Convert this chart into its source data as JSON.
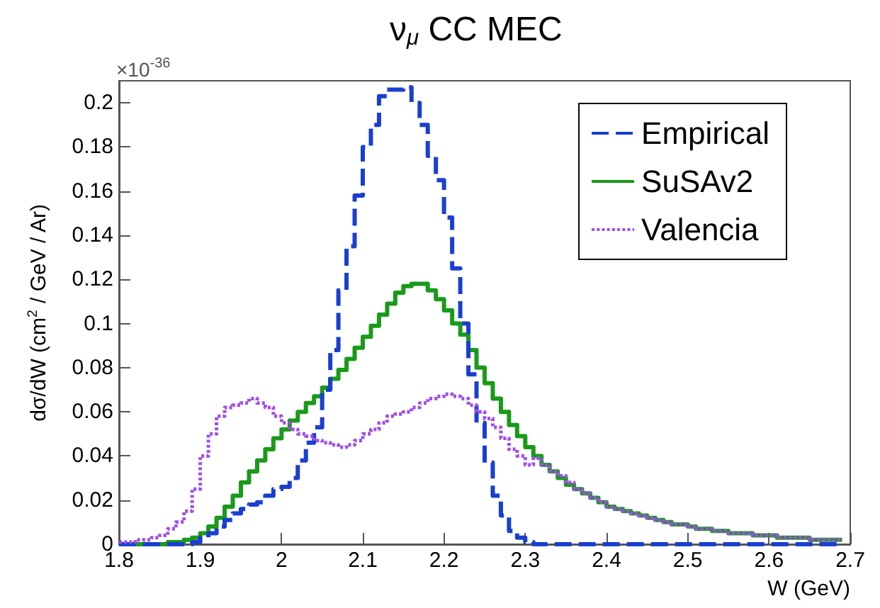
{
  "chart_data": {
    "type": "step",
    "title": "ν$_{μ}$ CC MEC",
    "xlabel": "W (GeV)",
    "ylabel": "dσ/dW (cm$^{2}$ / GeV / Ar)",
    "annotations": [
      "×10$^{-36}$"
    ],
    "x": [
      1.8,
      1.81,
      1.82,
      1.83,
      1.84,
      1.85,
      1.86,
      1.87,
      1.88,
      1.89,
      1.9,
      1.91,
      1.92,
      1.93,
      1.94,
      1.95,
      1.96,
      1.97,
      1.98,
      1.99,
      2.0,
      2.01,
      2.02,
      2.03,
      2.04,
      2.05,
      2.06,
      2.07,
      2.08,
      2.09,
      2.1,
      2.11,
      2.12,
      2.13,
      2.14,
      2.15,
      2.16,
      2.17,
      2.18,
      2.19,
      2.2,
      2.21,
      2.22,
      2.23,
      2.24,
      2.25,
      2.26,
      2.27,
      2.28,
      2.29,
      2.3,
      2.31,
      2.32,
      2.33,
      2.34,
      2.35,
      2.36,
      2.37,
      2.38,
      2.39,
      2.4,
      2.41,
      2.42,
      2.43,
      2.44,
      2.45,
      2.46,
      2.47,
      2.48,
      2.49,
      2.5,
      2.51,
      2.52,
      2.53,
      2.54,
      2.55,
      2.56,
      2.57,
      2.58,
      2.59,
      2.6,
      2.61,
      2.62,
      2.63,
      2.64,
      2.65,
      2.66,
      2.67,
      2.68,
      2.69
    ],
    "series": [
      {
        "name": "Empirical",
        "color": "#1a3fd0",
        "line_style": "dashed",
        "values": [
          0,
          0,
          0,
          0,
          0,
          0,
          0,
          0,
          0,
          0.001,
          0.003,
          0.005,
          0.008,
          0.011,
          0.014,
          0.016,
          0.018,
          0.019,
          0.022,
          0.025,
          0.026,
          0.03,
          0.038,
          0.046,
          0.053,
          0.07,
          0.088,
          0.115,
          0.135,
          0.158,
          0.18,
          0.19,
          0.203,
          0.206,
          0.206,
          0.207,
          0.2,
          0.19,
          0.176,
          0.165,
          0.148,
          0.125,
          0.1,
          0.077,
          0.055,
          0.037,
          0.022,
          0.013,
          0.006,
          0.003,
          0.001,
          0,
          0,
          0,
          0,
          0,
          0,
          0,
          0,
          0,
          0,
          0,
          0,
          0,
          0,
          0,
          0,
          0,
          0,
          0,
          0,
          0,
          0,
          0,
          0,
          0,
          0,
          0,
          0,
          0,
          0,
          0,
          0,
          0,
          0,
          0,
          0,
          0,
          0,
          0
        ]
      },
      {
        "name": "SuSAv2",
        "color": "#1a9a1a",
        "line_style": "solid",
        "values": [
          0,
          0,
          0,
          0,
          0,
          0,
          0.001,
          0.001,
          0.002,
          0.003,
          0.005,
          0.008,
          0.012,
          0.017,
          0.022,
          0.028,
          0.033,
          0.038,
          0.043,
          0.048,
          0.052,
          0.056,
          0.06,
          0.064,
          0.067,
          0.071,
          0.075,
          0.079,
          0.084,
          0.089,
          0.094,
          0.099,
          0.104,
          0.109,
          0.114,
          0.117,
          0.118,
          0.118,
          0.115,
          0.111,
          0.106,
          0.1,
          0.095,
          0.088,
          0.08,
          0.073,
          0.066,
          0.06,
          0.054,
          0.049,
          0.044,
          0.04,
          0.036,
          0.033,
          0.03,
          0.027,
          0.025,
          0.023,
          0.021,
          0.019,
          0.017,
          0.016,
          0.015,
          0.014,
          0.013,
          0.012,
          0.011,
          0.01,
          0.009,
          0.009,
          0.008,
          0.007,
          0.007,
          0.006,
          0.006,
          0.005,
          0.005,
          0.005,
          0.004,
          0.004,
          0.004,
          0.003,
          0.003,
          0.003,
          0.003,
          0.002,
          0.002,
          0.002,
          0.002,
          0.002
        ]
      },
      {
        "name": "Valencia",
        "color": "#a04ee8",
        "line_style": "dotted",
        "values": [
          0.001,
          0.001,
          0.002,
          0.002,
          0.003,
          0.004,
          0.007,
          0.01,
          0.015,
          0.025,
          0.04,
          0.05,
          0.058,
          0.062,
          0.063,
          0.064,
          0.066,
          0.064,
          0.062,
          0.058,
          0.055,
          0.052,
          0.05,
          0.049,
          0.047,
          0.046,
          0.045,
          0.044,
          0.045,
          0.047,
          0.05,
          0.052,
          0.055,
          0.058,
          0.059,
          0.06,
          0.062,
          0.064,
          0.066,
          0.067,
          0.068,
          0.067,
          0.066,
          0.063,
          0.06,
          0.057,
          0.053,
          0.048,
          0.043,
          0.04,
          0.036,
          0.039,
          0.036,
          0.033,
          0.031,
          0.028,
          0.025,
          0.023,
          0.021,
          0.019,
          0.017,
          0.016,
          0.015,
          0.014,
          0.013,
          0.012,
          0.011,
          0.01,
          0.009,
          0.009,
          0.008,
          0.007,
          0.007,
          0.006,
          0.006,
          0.005,
          0.005,
          0.005,
          0.004,
          0.004,
          0.004,
          0.003,
          0.003,
          0.003,
          0.003,
          0.002,
          0.002,
          0.002,
          0.002,
          0.002
        ]
      }
    ],
    "xlim": [
      1.8,
      2.7
    ],
    "xticks": [
      1.8,
      1.9,
      2,
      2.1,
      2.2,
      2.3,
      2.4,
      2.5,
      2.6,
      2.7
    ],
    "ylim": [
      0,
      0.21
    ],
    "yticks": [
      0,
      0.02,
      0.04,
      0.06,
      0.08,
      0.1,
      0.12,
      0.14,
      0.16,
      0.18,
      0.2
    ],
    "grid": false,
    "legend": "top right"
  }
}
